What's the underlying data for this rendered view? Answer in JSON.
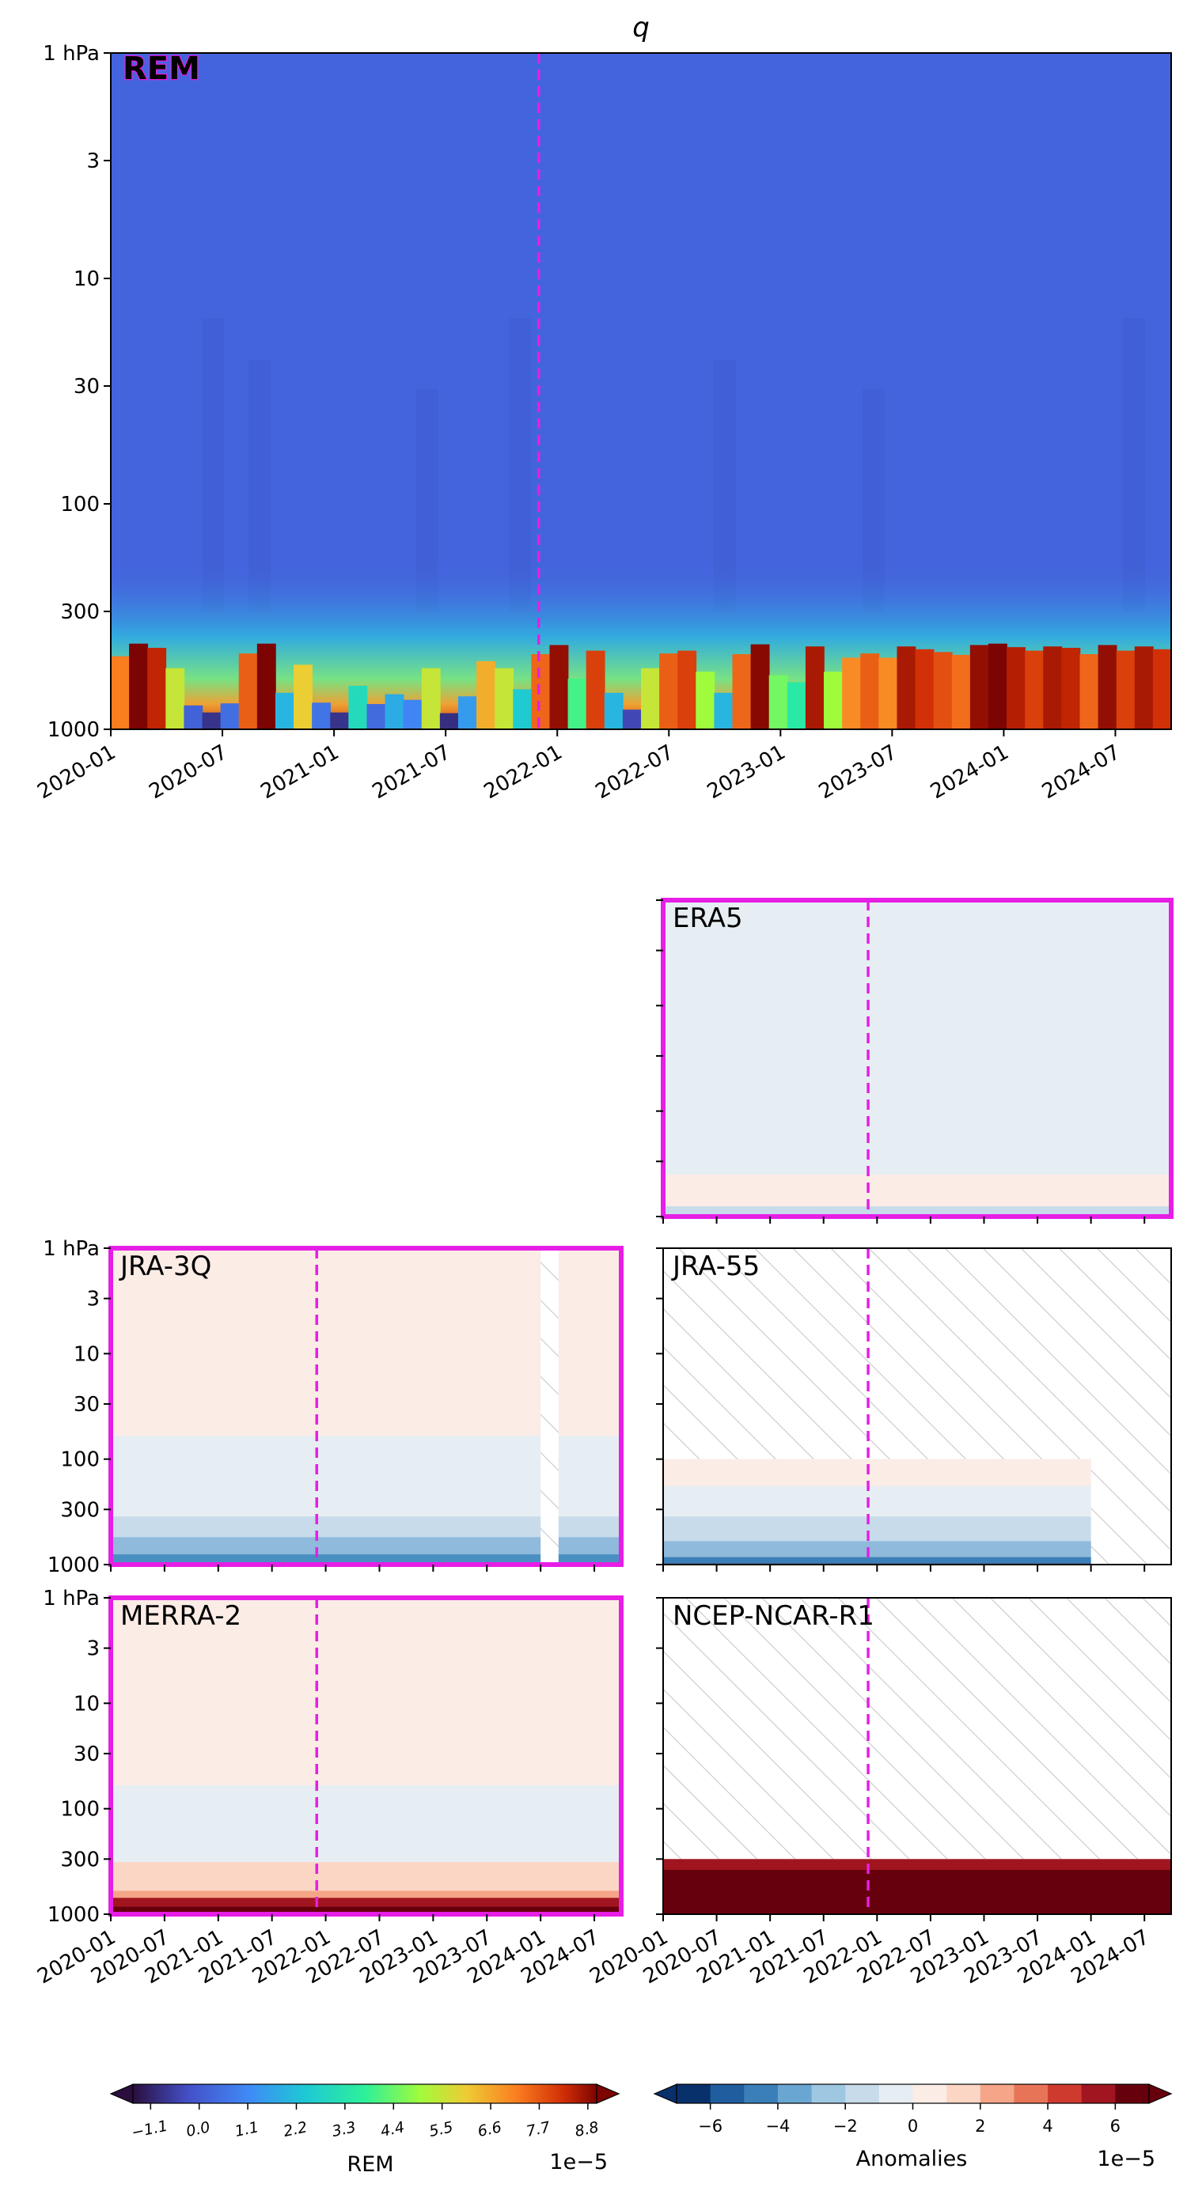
{
  "figure": {
    "title": "q"
  },
  "chart_data": [
    {
      "type": "heatmap",
      "panel": "main",
      "label": "REM",
      "highlighted": true,
      "x_range": [
        "2020-01",
        "2024-10"
      ],
      "y_scale": "log",
      "y_range_hPa": [
        1000,
        1
      ],
      "yticks": [
        "1 hPa",
        "3",
        "10",
        "30",
        "100",
        "300",
        "1000"
      ],
      "xticks": [
        "2020-01",
        "2020-07",
        "2021-01",
        "2021-07",
        "2022-01",
        "2022-07",
        "2023-01",
        "2023-07",
        "2024-01",
        "2024-07"
      ],
      "vline_date": "2021-12",
      "surface_values_1e5": [
        7.2,
        9.0,
        8.4,
        5.5,
        0.2,
        -0.8,
        0.5,
        7.6,
        9.0,
        2.0,
        6.0,
        0.6,
        -0.8,
        3.0,
        0.4,
        1.8,
        1.0,
        5.5,
        -0.9,
        1.5,
        6.5,
        5.5,
        2.5,
        7.5,
        8.8,
        4.0,
        8.0,
        2.0,
        -0.4,
        5.5,
        7.6,
        8.0,
        5.0,
        2.0,
        7.5,
        8.9,
        4.5,
        3.5,
        8.6,
        5.0,
        7.0,
        7.6,
        7.0,
        8.6,
        8.2,
        7.8,
        7.4,
        8.8,
        9.0,
        8.5,
        8.0,
        8.6,
        8.4,
        7.5,
        8.8,
        8.0,
        8.6,
        8.2
      ]
    },
    {
      "type": "heatmap",
      "panel": "ERA5",
      "label": "ERA5",
      "highlighted": true,
      "available_to_hPa": 1,
      "vline_date": "2021-12"
    },
    {
      "type": "heatmap",
      "panel": "JRA-3Q",
      "label": "JRA-3Q",
      "highlighted": true,
      "available_to_hPa": 1,
      "missing_months": [
        "2024-01",
        "2024-02"
      ],
      "vline_date": "2021-12"
    },
    {
      "type": "heatmap",
      "panel": "JRA-55",
      "label": "JRA-55",
      "highlighted": false,
      "available_to_hPa": 100,
      "available_until": "2024-01",
      "vline_date": "2021-12"
    },
    {
      "type": "heatmap",
      "panel": "MERRA-2",
      "label": "MERRA-2",
      "highlighted": true,
      "available_to_hPa": 1,
      "vline_date": "2021-12"
    },
    {
      "type": "heatmap",
      "panel": "NCEP-NCAR-R1",
      "label": "NCEP-NCAR-R1",
      "highlighted": false,
      "available_to_hPa": 300,
      "vline_date": "2021-12"
    }
  ],
  "colorbars": {
    "rem": {
      "label": "REM",
      "scale": "1e−5",
      "ticks": [
        "−1.1",
        "0.0",
        "1.1",
        "2.2",
        "3.3",
        "4.4",
        "5.5",
        "6.6",
        "7.7",
        "8.8"
      ],
      "range": [
        -1.5,
        9.0
      ]
    },
    "anomalies": {
      "label": "Anomalies",
      "scale": "1e−5",
      "ticks": [
        "−6",
        "−4",
        "−2",
        "0",
        "2",
        "4",
        "6"
      ],
      "range": [
        -7,
        7
      ]
    }
  },
  "colors": {
    "highlight": "#e61ee6",
    "vline": "#e61ee6",
    "rem_background": "#4464dd",
    "anom_zero": "#e6eef3",
    "anom_small_pos": "#fbece6"
  }
}
